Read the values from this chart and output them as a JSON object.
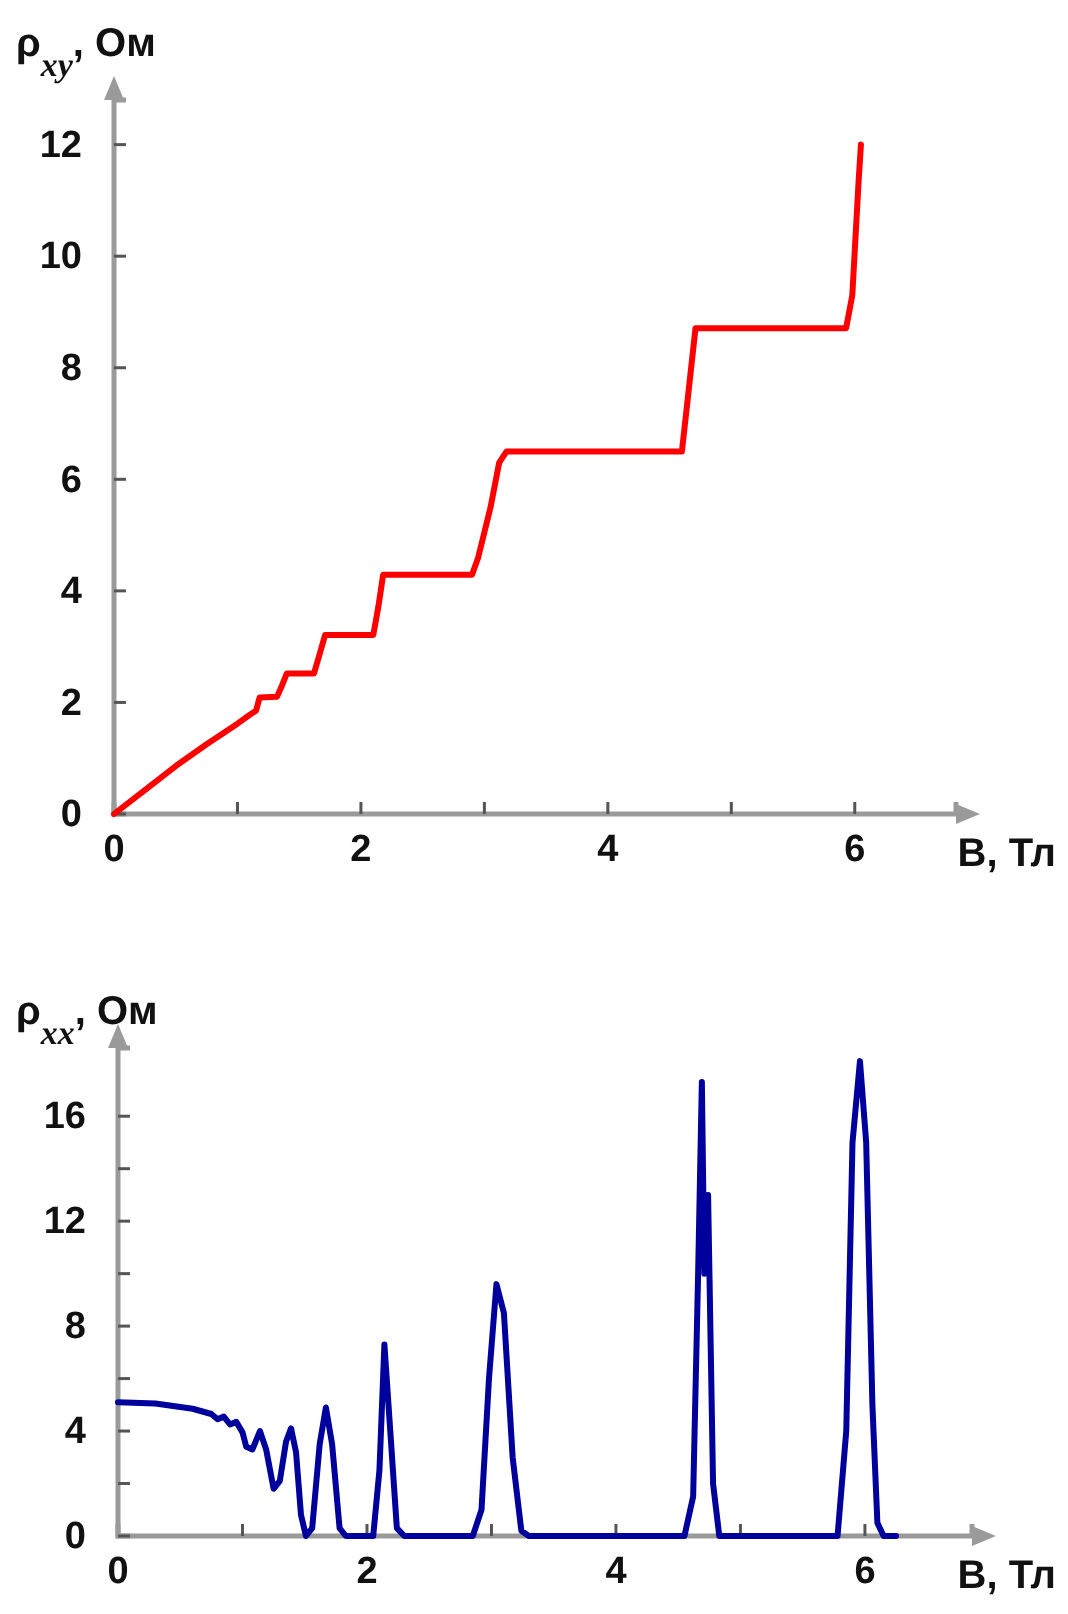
{
  "chart_data": [
    {
      "type": "line",
      "ylabel": "ρ$_{xy}$, Ом",
      "xlabel": "B, Тл",
      "x": [
        0,
        0.25,
        0.5,
        0.75,
        1.0,
        1.1,
        1.15,
        1.18,
        1.32,
        1.36,
        1.4,
        1.62,
        1.67,
        1.71,
        2.1,
        2.14,
        2.18,
        2.9,
        2.95,
        3.05,
        3.12,
        3.18,
        4.6,
        4.65,
        4.71,
        5.93,
        5.98,
        6.01,
        6.03,
        6.05
      ],
      "series": [
        {
          "color": "#ff0000",
          "values": [
            0,
            0.43,
            0.86,
            1.25,
            1.62,
            1.78,
            1.85,
            2.09,
            2.1,
            2.3,
            2.52,
            2.52,
            2.9,
            3.21,
            3.21,
            3.7,
            4.29,
            4.29,
            4.6,
            5.5,
            6.3,
            6.5,
            6.5,
            7.5,
            8.71,
            8.71,
            9.3,
            10.5,
            11.3,
            12
          ]
        }
      ],
      "xlim": [
        0,
        6.82
      ],
      "ylim": [
        0,
        12.8
      ],
      "xticks": [
        0,
        {
          "value": 1,
          "label": null
        },
        2,
        {
          "value": 3,
          "label": null
        },
        4,
        {
          "value": 5,
          "label": null
        },
        6
      ],
      "yticks": [
        0,
        2,
        4,
        6,
        8,
        10,
        12
      ],
      "grid": false
    },
    {
      "type": "line",
      "ylabel": "ρ$_{xx}$, Ом",
      "xlabel": "B, Тл",
      "x": [
        0,
        0.3,
        0.6,
        0.75,
        0.8,
        0.85,
        0.9,
        0.95,
        1.0,
        1.03,
        1.08,
        1.14,
        1.19,
        1.25,
        1.3,
        1.35,
        1.39,
        1.43,
        1.47,
        1.51,
        1.56,
        1.62,
        1.67,
        1.72,
        1.78,
        1.83,
        2.05,
        2.1,
        2.14,
        2.18,
        2.24,
        2.3,
        2.85,
        2.92,
        2.98,
        3.04,
        3.1,
        3.17,
        3.24,
        3.3,
        4.55,
        4.62,
        4.66,
        4.69,
        4.71,
        4.74,
        4.78,
        4.83,
        5.78,
        5.85,
        5.9,
        5.96,
        6.01,
        6.06,
        6.1,
        6.15,
        6.25
      ],
      "series": [
        {
          "color": "#00009c",
          "values": [
            5.1,
            5.05,
            4.85,
            4.65,
            4.45,
            4.55,
            4.25,
            4.35,
            3.95,
            3.4,
            3.3,
            4.0,
            3.3,
            1.8,
            2.1,
            3.6,
            4.1,
            3.2,
            0.8,
            0,
            0.3,
            3.5,
            4.9,
            3.5,
            0.3,
            0,
            0,
            2.5,
            7.3,
            4.5,
            0.3,
            0,
            0,
            1.0,
            6.0,
            9.6,
            8.5,
            3.0,
            0.2,
            0,
            0,
            1.5,
            10,
            17.3,
            10,
            13,
            2,
            0,
            0,
            4,
            15,
            18.1,
            15,
            5,
            0.5,
            0,
            0
          ]
        }
      ],
      "xlim": [
        0,
        6.86
      ],
      "ylim": [
        0,
        18.6
      ],
      "xticks": [
        0,
        {
          "value": 1,
          "label": null
        },
        2,
        {
          "value": 3,
          "label": null
        },
        4,
        {
          "value": 5,
          "label": null
        },
        6
      ],
      "yticks": [
        0,
        {
          "value": 2,
          "label": null
        },
        4,
        {
          "value": 6,
          "label": null
        },
        8,
        {
          "value": 10,
          "label": null
        },
        12,
        {
          "value": 14,
          "label": null
        },
        16
      ],
      "grid": false
    }
  ]
}
